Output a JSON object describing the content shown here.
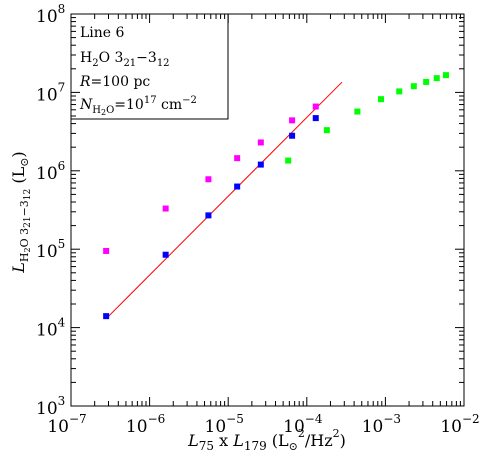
{
  "chart_data": {
    "type": "scatter",
    "xscale": "log",
    "yscale": "log",
    "xlim": [
      1e-07,
      0.01
    ],
    "ylim": [
      1000.0,
      100000000.0
    ],
    "x_ticks": [
      "10",
      "10",
      "10",
      "10",
      "10",
      "10"
    ],
    "x_tick_exponents": [
      "−7",
      "−6",
      "−5",
      "−4",
      "−3",
      "−2"
    ],
    "y_ticks": [
      "10",
      "10",
      "10",
      "10",
      "10",
      "10"
    ],
    "y_tick_exponents": [
      "3",
      "4",
      "5",
      "6",
      "7",
      "8"
    ],
    "ylabel": {
      "base": "L",
      "sub1": "H",
      "sub2": "2",
      "mid": "O 3",
      "sub3": "21",
      "dash": "−3",
      "sub4": "12",
      "unit_open": "  (L",
      "unit_sub": "⊙",
      "unit_close": ")"
    },
    "xlabel": {
      "l1": "L",
      "l1_sub": "75",
      "times": " x ",
      "l2": "L",
      "l2_sub": "179",
      "unit_open": " (L",
      "unit_sub": "⊙",
      "unit_sup1": "2",
      "unit_mid": "/Hz",
      "unit_sup2": "2",
      "unit_close": ")"
    },
    "annotation": {
      "line1": "Line 6",
      "line2_a": "H",
      "line2_sub": "2",
      "line2_b": "O 3",
      "line2_sub2": "21",
      "line2_c": "−3",
      "line2_sub3": "12",
      "line3_a": "R",
      "line3_b": "=100 pc",
      "line4_a": "N",
      "line4_sub1": "H",
      "line4_sub2": "2",
      "line4_sub3": "O",
      "line4_b": "=10",
      "line4_sup": "17",
      "line4_c": " cm",
      "line4_sup2": "−2"
    },
    "series": [
      {
        "color": "#0000ff",
        "points": [
          [
            2.8e-07,
            14000.0
          ],
          [
            1.6e-06,
            85000.0
          ],
          [
            5.6e-06,
            270000.0
          ],
          [
            1.3e-05,
            630000.0
          ],
          [
            2.6e-05,
            1200000.0
          ],
          [
            6.5e-05,
            2800000.0
          ],
          [
            0.00013,
            4700000.0
          ]
        ]
      },
      {
        "color": "#ff00ff",
        "points": [
          [
            2.8e-07,
            95000.0
          ],
          [
            1.6e-06,
            330000.0
          ],
          [
            5.6e-06,
            780000.0
          ],
          [
            1.3e-05,
            1450000.0
          ],
          [
            2.6e-05,
            2300000.0
          ],
          [
            6.5e-05,
            4400000.0
          ],
          [
            0.00013,
            6600000.0
          ]
        ]
      },
      {
        "color": "#00ff00",
        "points": [
          [
            5.8e-05,
            1350000.0
          ],
          [
            0.00018,
            3300000.0
          ],
          [
            0.00044,
            5700000.0
          ],
          [
            0.00088,
            8200000.0
          ],
          [
            0.0015,
            10300000.0
          ],
          [
            0.0023,
            12000000.0
          ],
          [
            0.0033,
            13600000.0
          ],
          [
            0.0045,
            15200000.0
          ],
          [
            0.0059,
            16600000.0
          ]
        ]
      }
    ],
    "fit_line": {
      "color": "#ff0000",
      "points": [
        [
          2.8e-07,
          13000.0
        ],
        [
          0.00028,
          13500000.0
        ]
      ]
    }
  }
}
